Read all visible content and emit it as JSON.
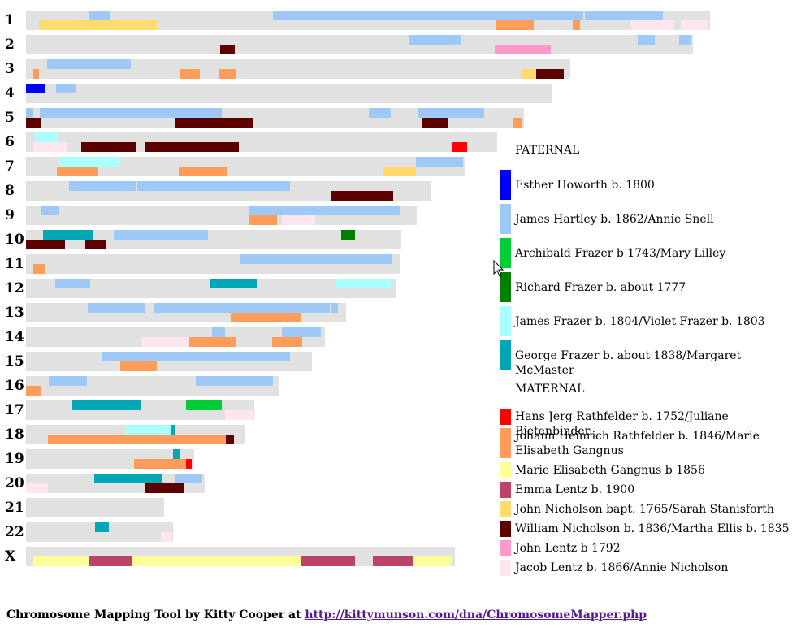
{
  "chromosomes": [
    {
      "label": "1",
      "length": 842,
      "segments": [
        {
          "s": 78,
          "e": 104,
          "row": 0,
          "color": "#9ec9f7"
        },
        {
          "s": 304,
          "e": 686,
          "row": 0,
          "color": "#9ec9f7"
        },
        {
          "s": 688,
          "e": 784,
          "row": 0,
          "color": "#9ec9f7"
        },
        {
          "s": 16,
          "e": 161,
          "row": 1,
          "color": "#ffdb6b"
        },
        {
          "s": 579,
          "e": 625,
          "row": 1,
          "color": "#ff9c5a"
        },
        {
          "s": 673,
          "e": 682,
          "row": 1,
          "color": "#ff9c5a"
        },
        {
          "s": 745,
          "e": 798,
          "row": 1,
          "color": "#ffe6ee"
        },
        {
          "s": 806,
          "e": 840,
          "row": 1,
          "color": "#ffe6ee"
        }
      ]
    },
    {
      "label": "2",
      "length": 821,
      "segments": [
        {
          "s": 472,
          "e": 536,
          "row": 0,
          "color": "#9ec9f7"
        },
        {
          "s": 753,
          "e": 774,
          "row": 0,
          "color": "#9ec9f7"
        },
        {
          "s": 804,
          "e": 819,
          "row": 0,
          "color": "#9ec9f7"
        },
        {
          "s": 239,
          "e": 257,
          "row": 1,
          "color": "#5c0000"
        },
        {
          "s": 577,
          "e": 646,
          "row": 1,
          "color": "#ff99cc"
        }
      ]
    },
    {
      "label": "3",
      "length": 670,
      "segments": [
        {
          "s": 26,
          "e": 129,
          "row": 0,
          "color": "#9ec9f7"
        },
        {
          "s": 9,
          "e": 16,
          "row": 1,
          "color": "#ff9c5a"
        },
        {
          "s": 189,
          "e": 214,
          "row": 1,
          "color": "#ff9c5a"
        },
        {
          "s": 237,
          "e": 258,
          "row": 1,
          "color": "#ff9c5a"
        },
        {
          "s": 609,
          "e": 628,
          "row": 1,
          "color": "#ffdb6b"
        },
        {
          "s": 628,
          "e": 662,
          "row": 1,
          "color": "#5c0000"
        }
      ]
    },
    {
      "label": "4",
      "length": 647,
      "segments": [
        {
          "s": 0,
          "e": 24,
          "row": 0,
          "color": "#0000ff"
        },
        {
          "s": 37,
          "e": 62,
          "row": 0,
          "color": "#9ec9f7"
        }
      ]
    },
    {
      "label": "5",
      "length": 613,
      "segments": [
        {
          "s": 0,
          "e": 9,
          "row": 0,
          "color": "#9ec9f7"
        },
        {
          "s": 17,
          "e": 241,
          "row": 0,
          "color": "#9ec9f7"
        },
        {
          "s": 422,
          "e": 449,
          "row": 0,
          "color": "#9ec9f7"
        },
        {
          "s": 482,
          "e": 564,
          "row": 0,
          "color": "#9ec9f7"
        },
        {
          "s": 0,
          "e": 19,
          "row": 1,
          "color": "#5c0000"
        },
        {
          "s": 183,
          "e": 280,
          "row": 1,
          "color": "#5c0000"
        },
        {
          "s": 488,
          "e": 519,
          "row": 1,
          "color": "#5c0000"
        },
        {
          "s": 600,
          "e": 611,
          "row": 1,
          "color": "#ff9c5a"
        }
      ]
    },
    {
      "label": "6",
      "length": 580,
      "segments": [
        {
          "s": 11,
          "e": 40,
          "row": 0,
          "color": "#aaffff"
        },
        {
          "s": 9,
          "e": 51,
          "row": 1,
          "color": "#ffe6ee"
        },
        {
          "s": 68,
          "e": 136,
          "row": 1,
          "color": "#5c0000"
        },
        {
          "s": 146,
          "e": 262,
          "row": 1,
          "color": "#5c0000"
        },
        {
          "s": 524,
          "e": 543,
          "row": 1,
          "color": "#ff0000"
        }
      ]
    },
    {
      "label": "7",
      "length": 540,
      "segments": [
        {
          "s": 42,
          "e": 116,
          "row": 0,
          "color": "#aaffff"
        },
        {
          "s": 480,
          "e": 538,
          "row": 0,
          "color": "#9ec9f7"
        },
        {
          "s": 38,
          "e": 89,
          "row": 1,
          "color": "#ff9c5a"
        },
        {
          "s": 188,
          "e": 248,
          "row": 1,
          "color": "#ff9c5a"
        },
        {
          "s": 439,
          "e": 480,
          "row": 1,
          "color": "#ffdb6b"
        }
      ]
    },
    {
      "label": "8",
      "length": 498,
      "segments": [
        {
          "s": 53,
          "e": 136,
          "row": 0,
          "color": "#9ec9f7"
        },
        {
          "s": 137,
          "e": 325,
          "row": 0,
          "color": "#9ec9f7"
        },
        {
          "s": 375,
          "e": 452,
          "row": 1,
          "color": "#5c0000"
        }
      ]
    },
    {
      "label": "9",
      "length": 481,
      "segments": [
        {
          "s": 18,
          "e": 41,
          "row": 0,
          "color": "#9ec9f7"
        },
        {
          "s": 274,
          "e": 460,
          "row": 0,
          "color": "#9ec9f7"
        },
        {
          "s": 274,
          "e": 309,
          "row": 1,
          "color": "#ff9c5a"
        },
        {
          "s": 315,
          "e": 356,
          "row": 1,
          "color": "#ffe6ee"
        }
      ]
    },
    {
      "label": "10",
      "length": 462,
      "segments": [
        {
          "s": 21,
          "e": 83,
          "row": 0,
          "color": "#00a8b5"
        },
        {
          "s": 108,
          "e": 224,
          "row": 0,
          "color": "#9ec9f7"
        },
        {
          "s": 388,
          "e": 405,
          "row": 0,
          "color": "#008000"
        },
        {
          "s": 0,
          "e": 48,
          "row": 1,
          "color": "#5c0000"
        },
        {
          "s": 73,
          "e": 99,
          "row": 1,
          "color": "#5c0000"
        }
      ]
    },
    {
      "label": "11",
      "length": 460,
      "segments": [
        {
          "s": 263,
          "e": 450,
          "row": 0,
          "color": "#9ec9f7"
        },
        {
          "s": 9,
          "e": 24,
          "row": 1,
          "color": "#ff9c5a"
        }
      ]
    },
    {
      "label": "12",
      "length": 456,
      "segments": [
        {
          "s": 36,
          "e": 79,
          "row": 0,
          "color": "#9ec9f7"
        },
        {
          "s": 227,
          "e": 284,
          "row": 0,
          "color": "#00a8b5"
        },
        {
          "s": 381,
          "e": 449,
          "row": 0,
          "color": "#aaffff"
        }
      ]
    },
    {
      "label": "13",
      "length": 394,
      "segments": [
        {
          "s": 76,
          "e": 146,
          "row": 0,
          "color": "#9ec9f7"
        },
        {
          "s": 157,
          "e": 374,
          "row": 0,
          "color": "#9ec9f7"
        },
        {
          "s": 375,
          "e": 384,
          "row": 0,
          "color": "#9ec9f7"
        },
        {
          "s": 252,
          "e": 338,
          "row": 1,
          "color": "#ff9c5a"
        }
      ]
    },
    {
      "label": "14",
      "length": 368,
      "segments": [
        {
          "s": 229,
          "e": 245,
          "row": 0,
          "color": "#9ec9f7"
        },
        {
          "s": 315,
          "e": 363,
          "row": 0,
          "color": "#9ec9f7"
        },
        {
          "s": 143,
          "e": 201,
          "row": 1,
          "color": "#ffe6ee"
        },
        {
          "s": 201,
          "e": 259,
          "row": 1,
          "color": "#ff9c5a"
        },
        {
          "s": 303,
          "e": 340,
          "row": 1,
          "color": "#ff9c5a"
        }
      ]
    },
    {
      "label": "15",
      "length": 352,
      "segments": [
        {
          "s": 93,
          "e": 325,
          "row": 0,
          "color": "#9ec9f7"
        },
        {
          "s": 116,
          "e": 161,
          "row": 1,
          "color": "#ff9c5a"
        }
      ]
    },
    {
      "label": "16",
      "length": 311,
      "segments": [
        {
          "s": 28,
          "e": 75,
          "row": 0,
          "color": "#9ec9f7"
        },
        {
          "s": 209,
          "e": 304,
          "row": 0,
          "color": "#9ec9f7"
        },
        {
          "s": 0,
          "e": 19,
          "row": 1,
          "color": "#ff9c5a"
        }
      ]
    },
    {
      "label": "17",
      "length": 281,
      "segments": [
        {
          "s": 57,
          "e": 141,
          "row": 0,
          "color": "#00a8b5"
        },
        {
          "s": 197,
          "e": 241,
          "row": 0,
          "color": "#00cc33"
        },
        {
          "s": 245,
          "e": 279,
          "row": 1,
          "color": "#ffe6ee"
        }
      ]
    },
    {
      "label": "18",
      "length": 270,
      "segments": [
        {
          "s": 122,
          "e": 178,
          "row": 0,
          "color": "#aaffff"
        },
        {
          "s": 179,
          "e": 184,
          "row": 0,
          "color": "#00a8b5"
        },
        {
          "s": 27,
          "e": 246,
          "row": 1,
          "color": "#ff9c5a"
        },
        {
          "s": 246,
          "e": 256,
          "row": 1,
          "color": "#5c0000"
        }
      ]
    },
    {
      "label": "19",
      "length": 207,
      "segments": [
        {
          "s": 181,
          "e": 189,
          "row": 0,
          "color": "#00a8b5"
        },
        {
          "s": 133,
          "e": 197,
          "row": 1,
          "color": "#ff9c5a"
        },
        {
          "s": 197,
          "e": 204,
          "row": 1,
          "color": "#ff0000"
        }
      ]
    },
    {
      "label": "20",
      "length": 220,
      "segments": [
        {
          "s": 84,
          "e": 168,
          "row": 0,
          "color": "#00a8b5"
        },
        {
          "s": 184,
          "e": 217,
          "row": 0,
          "color": "#9ec9f7"
        },
        {
          "s": 0,
          "e": 27,
          "row": 1,
          "color": "#ffe6ee"
        },
        {
          "s": 146,
          "e": 195,
          "row": 1,
          "color": "#5c0000"
        }
      ]
    },
    {
      "label": "21",
      "length": 170,
      "segments": []
    },
    {
      "label": "22",
      "length": 181,
      "segments": [
        {
          "s": 85,
          "e": 102,
          "row": 0,
          "color": "#00a8b5"
        },
        {
          "s": 166,
          "e": 180,
          "row": 1,
          "color": "#ffe6ee"
        }
      ]
    },
    {
      "label": "X",
      "length": 528,
      "segments": [
        {
          "s": 9,
          "e": 78,
          "row": 1,
          "color": "#ffff99"
        },
        {
          "s": 78,
          "e": 130,
          "row": 1,
          "color": "#bd4466"
        },
        {
          "s": 130,
          "e": 339,
          "row": 1,
          "color": "#ffff99"
        },
        {
          "s": 339,
          "e": 405,
          "row": 1,
          "color": "#bd4466"
        },
        {
          "s": 427,
          "e": 476,
          "row": 1,
          "color": "#bd4466"
        },
        {
          "s": 476,
          "e": 524,
          "row": 1,
          "color": "#ffff99"
        }
      ]
    }
  ],
  "legend": {
    "paternal_heading": "PATERNAL",
    "maternal_heading": "MATERNAL",
    "paternal": [
      {
        "label": "Esther Howorth b. 1800",
        "color": "#0000ff"
      },
      {
        "label": "James Hartley b. 1862/Annie Snell",
        "color": "#9ec9f7"
      },
      {
        "label": "Archibald Frazer b 1743/Mary Lilley",
        "color": "#00cc33"
      },
      {
        "label": "Richard Frazer b. about 1777",
        "color": "#008000"
      },
      {
        "label": "James Frazer b. 1804/Violet Frazer b. 1803",
        "color": "#aaffff"
      },
      {
        "label": "George Frazer b. about 1838/Margaret McMaster",
        "color": "#00a8b5"
      }
    ],
    "maternal": [
      {
        "label": "Hans Jerg Rathfelder b. 1752/Juliane Bietenbinder",
        "color": "#ff0000"
      },
      {
        "label": "Johann Heinrich Rathfelder b. 1846/Marie Elisabeth Gangnus",
        "color": "#ff9c5a"
      },
      {
        "label": "Marie Elisabeth Gangnus b 1856",
        "color": "#ffff99"
      },
      {
        "label": "Emma Lentz b. 1900",
        "color": "#bd4466"
      },
      {
        "label": "John Nicholson bapt. 1765/Sarah Stanisforth",
        "color": "#ffdb6b"
      },
      {
        "label": "William Nicholson b. 1836/Martha Ellis b. 1835",
        "color": "#5c0000"
      },
      {
        "label": "John Lentz b 1792",
        "color": "#ff99cc"
      },
      {
        "label": "Jacob Lentz b. 1866/Annie Nicholson",
        "color": "#ffe6ee"
      }
    ]
  },
  "footer": {
    "text": "Chromosome Mapping Tool by Kitty Cooper at",
    "link": "http://kittymunson.com/dna/ChromosomeMapper.php"
  }
}
